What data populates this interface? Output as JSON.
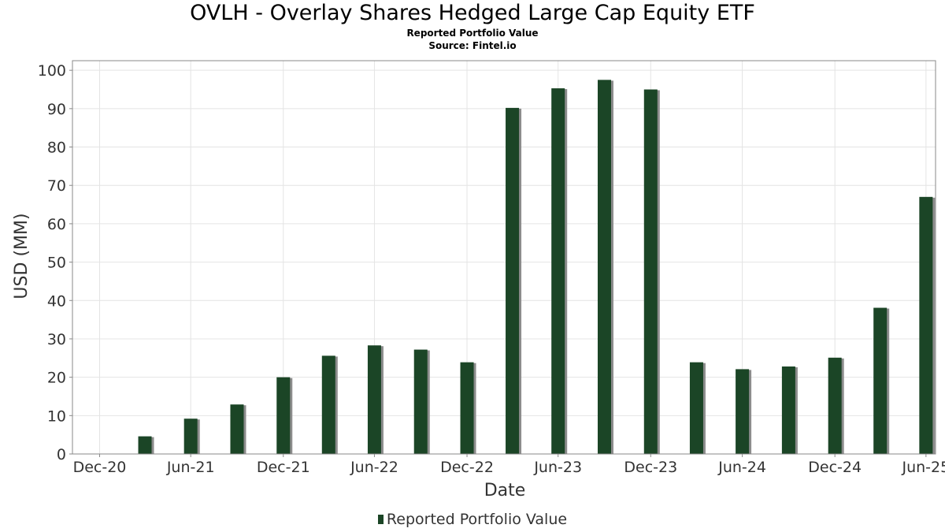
{
  "chart_data": {
    "type": "bar",
    "title": "OVLH - Overlay Shares Hedged Large Cap Equity ETF",
    "subtitles": [
      "Reported Portfolio Value",
      "Source: Fintel.io"
    ],
    "xlabel": "Date",
    "ylabel": "USD (MM)",
    "ylim": [
      0,
      102.5
    ],
    "yticks": [
      0,
      10,
      20,
      30,
      40,
      50,
      60,
      70,
      80,
      90,
      100
    ],
    "xticks": [
      "Dec-20",
      "Jun-21",
      "Dec-21",
      "Jun-22",
      "Dec-22",
      "Jun-23",
      "Dec-23",
      "Jun-24",
      "Dec-24",
      "Jun-25"
    ],
    "xtick_dates": [
      "2020-12-31",
      "2021-06-30",
      "2021-12-31",
      "2022-06-30",
      "2022-12-31",
      "2023-06-30",
      "2023-12-31",
      "2024-06-30",
      "2024-12-31",
      "2025-06-30"
    ],
    "x": [
      "2021-03-31",
      "2021-06-30",
      "2021-09-30",
      "2021-12-31",
      "2022-03-31",
      "2022-06-30",
      "2022-09-30",
      "2022-12-31",
      "2023-03-31",
      "2023-06-30",
      "2023-09-30",
      "2023-12-31",
      "2024-03-31",
      "2024-06-30",
      "2024-09-30",
      "2024-12-31",
      "2025-03-31",
      "2025-06-30"
    ],
    "series": [
      {
        "name": "Reported Portfolio Value",
        "values": [
          4.6,
          9.2,
          12.9,
          20.0,
          25.6,
          28.3,
          27.2,
          23.9,
          90.2,
          95.3,
          97.5,
          95.0,
          23.9,
          22.1,
          22.8,
          25.1,
          38.1,
          67.0
        ]
      }
    ],
    "grid": true,
    "legend": "bottom-center",
    "colors": {
      "bar": "#1b4526",
      "bar_shadow": "#8c8c8c",
      "grid": "#e4e4e4",
      "frame": "#888888"
    }
  }
}
